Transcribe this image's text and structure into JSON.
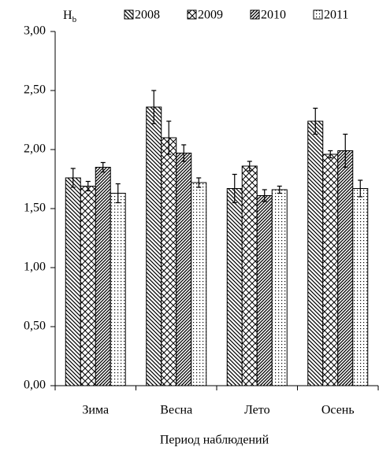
{
  "chart_data": {
    "type": "bar",
    "ylabel": {
      "text": "H",
      "subscript": "b"
    },
    "xlabel": "Период наблюдений",
    "categories": [
      "Зима",
      "Весна",
      "Лето",
      "Осень"
    ],
    "series": [
      {
        "name": "2008",
        "color": "#000000",
        "pattern": "backslash",
        "values": [
          1.76,
          2.36,
          1.67,
          2.24
        ],
        "errors": [
          0.08,
          0.14,
          0.12,
          0.11
        ]
      },
      {
        "name": "2009",
        "color": "#000000",
        "pattern": "cross",
        "values": [
          1.69,
          2.1,
          1.86,
          1.96
        ],
        "errors": [
          0.04,
          0.14,
          0.04,
          0.03
        ]
      },
      {
        "name": "2010",
        "color": "#000000",
        "pattern": "slash",
        "values": [
          1.85,
          1.97,
          1.61,
          1.99
        ],
        "errors": [
          0.04,
          0.07,
          0.05,
          0.14
        ]
      },
      {
        "name": "2011",
        "color": "#000000",
        "pattern": "dots",
        "values": [
          1.63,
          1.72,
          1.66,
          1.67
        ],
        "errors": [
          0.08,
          0.04,
          0.03,
          0.07
        ]
      }
    ],
    "ylim": [
      0,
      3
    ],
    "yticks": [
      {
        "value": 0,
        "label": "0,00"
      },
      {
        "value": 0.5,
        "label": "0,50"
      },
      {
        "value": 1,
        "label": "1,00"
      },
      {
        "value": 1.5,
        "label": "1,50"
      },
      {
        "value": 2,
        "label": "2,00"
      },
      {
        "value": 2.5,
        "label": "2,50"
      },
      {
        "value": 3,
        "label": "3,00"
      }
    ],
    "grid": false,
    "legend": "top"
  }
}
